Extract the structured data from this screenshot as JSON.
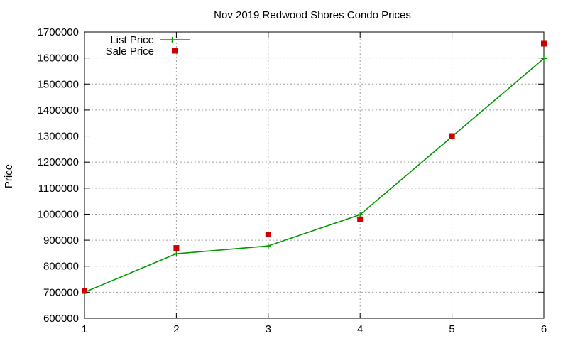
{
  "chart_data": {
    "type": "line",
    "title": "Nov 2019 Redwood Shores Condo Prices",
    "xlabel": "",
    "ylabel": "Price",
    "xlim": [
      1,
      6
    ],
    "ylim": [
      600000,
      1700000
    ],
    "x_ticks": [
      1,
      2,
      3,
      4,
      5,
      6
    ],
    "y_ticks": [
      600000,
      700000,
      800000,
      900000,
      1000000,
      1100000,
      1200000,
      1300000,
      1400000,
      1500000,
      1600000,
      1700000
    ],
    "grid": true,
    "legend_position": "top-left",
    "series": [
      {
        "name": "List Price",
        "style": "line-with-plus-markers",
        "color": "#009900",
        "x": [
          1,
          2,
          3,
          4,
          5,
          6
        ],
        "y": [
          700000,
          848000,
          878000,
          998000,
          1298000,
          1598000
        ]
      },
      {
        "name": "Sale Price",
        "style": "square-points",
        "color": "#cc0000",
        "x": [
          1,
          2,
          3,
          4,
          5,
          6
        ],
        "y": [
          705000,
          870000,
          922000,
          980000,
          1300000,
          1655000
        ]
      }
    ]
  }
}
